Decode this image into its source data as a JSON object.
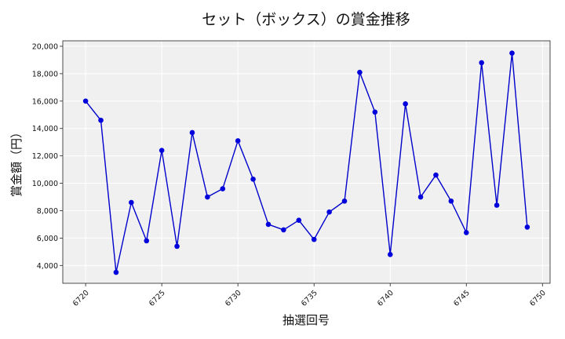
{
  "chart_data": {
    "type": "line",
    "title": "セット（ボックス）の賞金推移",
    "xlabel": "抽選回号",
    "ylabel": "賞金額（円）",
    "x": [
      6720,
      6721,
      6722,
      6723,
      6724,
      6725,
      6726,
      6727,
      6728,
      6729,
      6730,
      6731,
      6732,
      6733,
      6734,
      6735,
      6736,
      6737,
      6738,
      6739,
      6740,
      6741,
      6742,
      6743,
      6744,
      6745,
      6746,
      6747,
      6748,
      6749
    ],
    "series": [
      {
        "values": [
          16000,
          14600,
          3500,
          8600,
          5800,
          12400,
          5400,
          13700,
          9000,
          9600,
          13100,
          10300,
          7000,
          6600,
          7300,
          5900,
          7900,
          8700,
          18100,
          15200,
          4800,
          15800,
          9000,
          10600,
          8700,
          6400,
          18800,
          8400,
          19500,
          6800
        ]
      }
    ],
    "xlim": [
      6718.5,
      6750.5
    ],
    "ylim": [
      2700,
      20400
    ],
    "xticks": [
      6720,
      6725,
      6730,
      6735,
      6740,
      6745,
      6750
    ],
    "xtick_labels": [
      "6720",
      "6725",
      "6730",
      "6735",
      "6740",
      "6745",
      "6750"
    ],
    "yticks": [
      4000,
      6000,
      8000,
      10000,
      12000,
      14000,
      16000,
      18000,
      20000
    ],
    "ytick_labels": [
      "4,000",
      "6,000",
      "8,000",
      "10,000",
      "12,000",
      "14,000",
      "16,000",
      "18,000",
      "20,000"
    ],
    "grid": true,
    "line_color": "#0000cc",
    "marker_color": "#0000dd",
    "plot_background": "#f0f0f0"
  }
}
